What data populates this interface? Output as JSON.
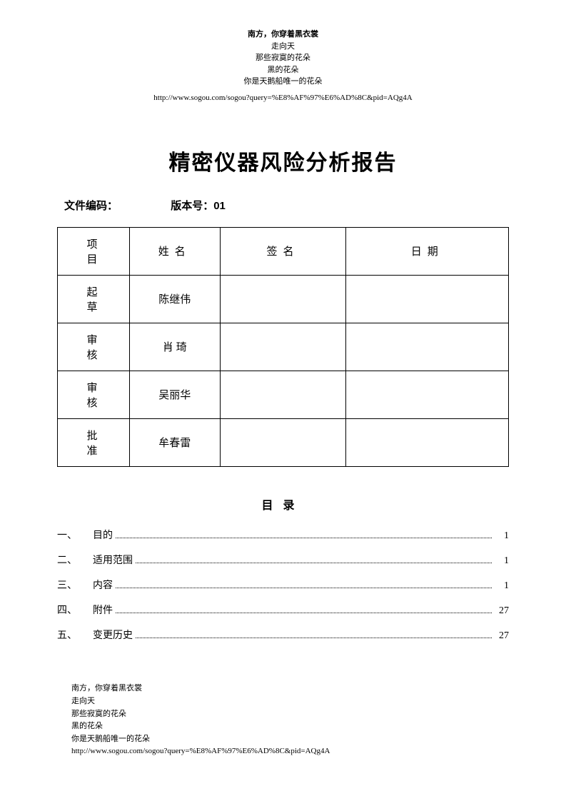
{
  "header": {
    "poem_lines": [
      "南方，你穿着黑衣裳",
      "走向天",
      "那些寂寞的花朵",
      "黑的花朵",
      "你是天鹅船唯一的花朵"
    ],
    "bold_line_index": 0,
    "url": "http://www.sogou.com/sogou?query=%E8%AF%97%E6%AD%8C&pid=AQg4A"
  },
  "title": "精密仪器风险分析报告",
  "doc_info": {
    "code_label": "文件编码：",
    "version_label": "版本号：01"
  },
  "approval_table": {
    "headers": {
      "project": "项目",
      "name": "姓名",
      "sign": "签名",
      "date": "日期"
    },
    "rows": [
      {
        "project": "起草",
        "name": "陈继伟",
        "sign": "",
        "date": ""
      },
      {
        "project": "审核",
        "name": "肖 琦",
        "sign": "",
        "date": ""
      },
      {
        "project": "审核",
        "name": "吴丽华",
        "sign": "",
        "date": ""
      },
      {
        "project": "批准",
        "name": "牟春雷",
        "sign": "",
        "date": ""
      }
    ]
  },
  "toc": {
    "title": "目录",
    "items": [
      {
        "num": "一、",
        "label": "目的",
        "page": "1"
      },
      {
        "num": "二、",
        "label": "适用范围",
        "page": "1"
      },
      {
        "num": "三、",
        "label": "内容",
        "page": "1"
      },
      {
        "num": "四、",
        "label": "附件",
        "page": "27"
      },
      {
        "num": "五、",
        "label": "变更历史",
        "page": "27"
      }
    ]
  },
  "footer": {
    "poem_lines": [
      "南方，你穿着黑衣裳",
      "走向天",
      "那些寂寞的花朵",
      "黑的花朵",
      "你是天鹅船唯一的花朵"
    ],
    "url": "http://www.sogou.com/sogou?query=%E8%AF%97%E6%AD%8C&pid=AQg4A"
  },
  "colors": {
    "text": "#000000",
    "background": "#ffffff",
    "border": "#000000"
  },
  "typography": {
    "title_fontsize": 30,
    "body_fontsize": 15,
    "small_fontsize": 11,
    "toc_fontsize": 14
  }
}
